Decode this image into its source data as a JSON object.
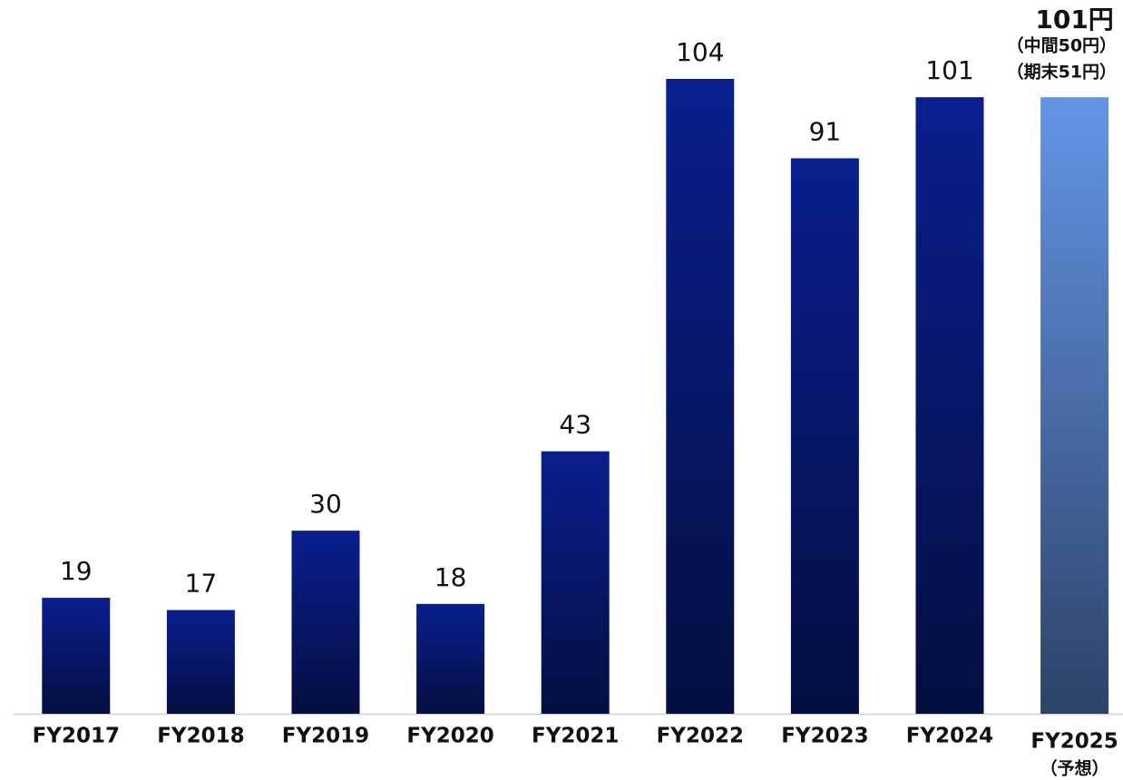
{
  "chart_data": {
    "type": "bar",
    "categories": [
      "FY2017",
      "FY2018",
      "FY2019",
      "FY2020",
      "FY2021",
      "FY2022",
      "FY2023",
      "FY2024",
      "FY2025"
    ],
    "values": [
      19,
      17,
      30,
      18,
      43,
      104,
      91,
      101,
      101
    ],
    "value_labels": [
      "19",
      "17",
      "30",
      "18",
      "43",
      "104",
      "91",
      "101",
      "101円"
    ],
    "colors": [
      "#0a1f8f",
      "#0a1f8f",
      "#0a1f8f",
      "#0a1f8f",
      "#0a1f8f",
      "#0a1f8f",
      "#0a1f8f",
      "#0a1f8f",
      "#6495e6"
    ],
    "ylim": [
      0,
      104
    ],
    "annotations": [
      "（予想）",
      "（中間50円）",
      "（期末51円）"
    ]
  }
}
